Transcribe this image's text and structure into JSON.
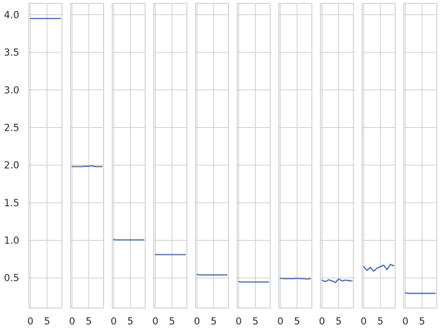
{
  "chart_data": {
    "type": "line",
    "layout": "10 side-by-side panels, shared y axis",
    "grid": true,
    "line_color": "#4c72b0",
    "shared_ylim": [
      0.1,
      4.15
    ],
    "y_ticks": [
      0.5,
      1.0,
      1.5,
      2.0,
      2.5,
      3.0,
      3.5,
      4.0
    ],
    "y_tick_labels": [
      "0.5",
      "1.0",
      "1.5",
      "2.0",
      "2.5",
      "3.0",
      "3.5",
      "4.0"
    ],
    "x_ticks": [
      0,
      5
    ],
    "x_tick_labels": [
      "0",
      "5"
    ],
    "xlim": [
      -0.45,
      9.45
    ],
    "panels": [
      {
        "x": [
          0,
          1,
          2,
          3,
          4,
          5,
          6,
          7,
          8,
          9
        ],
        "y": [
          3.95,
          3.95,
          3.95,
          3.95,
          3.95,
          3.95,
          3.95,
          3.95,
          3.95,
          3.95
        ]
      },
      {
        "x": [
          0,
          1,
          2,
          3,
          4,
          5,
          6,
          7,
          8,
          9
        ],
        "y": [
          1.98,
          1.98,
          1.98,
          1.98,
          1.985,
          1.985,
          1.99,
          1.98,
          1.98,
          1.98
        ]
      },
      {
        "x": [
          0,
          1,
          2,
          3,
          4,
          5,
          6,
          7,
          8,
          9
        ],
        "y": [
          1.01,
          1.005,
          1.005,
          1.005,
          1.005,
          1.005,
          1.005,
          1.005,
          1.005,
          1.005
        ]
      },
      {
        "x": [
          0,
          1,
          2,
          3,
          4,
          5,
          6,
          7,
          8,
          9
        ],
        "y": [
          0.81,
          0.81,
          0.81,
          0.81,
          0.81,
          0.81,
          0.81,
          0.81,
          0.81,
          0.81
        ]
      },
      {
        "x": [
          0,
          1,
          2,
          3,
          4,
          5,
          6,
          7,
          8,
          9
        ],
        "y": [
          0.545,
          0.54,
          0.54,
          0.54,
          0.54,
          0.54,
          0.54,
          0.54,
          0.54,
          0.54
        ]
      },
      {
        "x": [
          0,
          1,
          2,
          3,
          4,
          5,
          6,
          7,
          8,
          9
        ],
        "y": [
          0.45,
          0.445,
          0.445,
          0.445,
          0.445,
          0.445,
          0.445,
          0.445,
          0.445,
          0.445
        ]
      },
      {
        "x": [
          0,
          1,
          2,
          3,
          4,
          5,
          6,
          7,
          8,
          9
        ],
        "y": [
          0.495,
          0.49,
          0.49,
          0.49,
          0.49,
          0.495,
          0.49,
          0.49,
          0.485,
          0.49
        ]
      },
      {
        "x": [
          0,
          1,
          2,
          3,
          4,
          5,
          6,
          7,
          8,
          9
        ],
        "y": [
          0.47,
          0.45,
          0.475,
          0.46,
          0.44,
          0.485,
          0.46,
          0.47,
          0.465,
          0.46
        ]
      },
      {
        "x": [
          0,
          1,
          2,
          3,
          4,
          5,
          6,
          7,
          8,
          9
        ],
        "y": [
          0.65,
          0.6,
          0.64,
          0.59,
          0.63,
          0.65,
          0.67,
          0.61,
          0.68,
          0.66
        ]
      },
      {
        "x": [
          0,
          1,
          2,
          3,
          4,
          5,
          6,
          7,
          8,
          9
        ],
        "y": [
          0.3,
          0.295,
          0.295,
          0.295,
          0.295,
          0.295,
          0.295,
          0.295,
          0.295,
          0.295
        ]
      }
    ]
  }
}
